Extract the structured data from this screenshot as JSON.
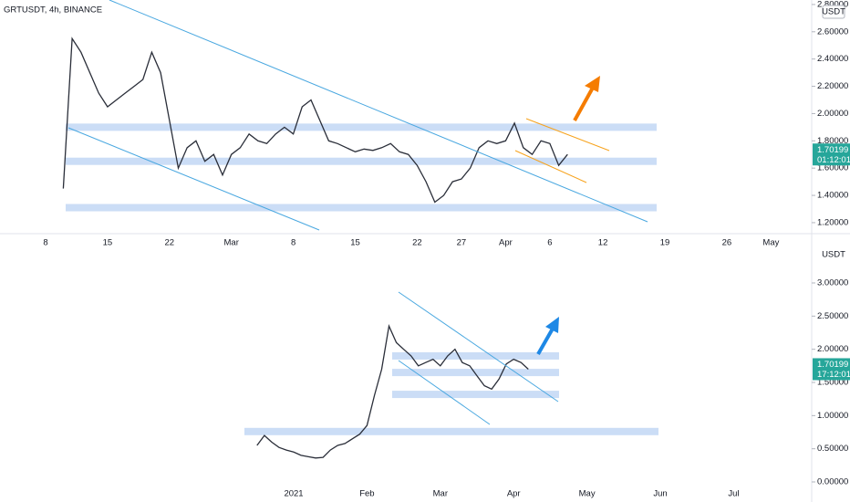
{
  "chart_data": [
    {
      "type": "line",
      "title": "GRTUSDT, 4h, BINANCE",
      "currency": "USDT",
      "last_price_label": "1.70199",
      "countdown": "01:12:01",
      "color": "#2a2e39",
      "level_color": "#c5d9f5",
      "categories": [
        null,
        null,
        null,
        null,
        null,
        "8",
        null,
        null,
        null,
        null,
        null,
        null,
        "15",
        null,
        null,
        null,
        null,
        null,
        null,
        "22",
        null,
        null,
        null,
        null,
        null,
        null,
        "Mar",
        null,
        null,
        null,
        null,
        null,
        null,
        "8",
        null,
        null,
        null,
        null,
        null,
        null,
        "15",
        null,
        null,
        null,
        null,
        null,
        null,
        "22",
        null,
        null,
        null,
        null,
        "27",
        null,
        null,
        null,
        null,
        "Apr",
        null,
        null,
        null,
        null,
        "6",
        null,
        null,
        null,
        null,
        null,
        "12",
        null,
        null,
        null,
        null,
        null,
        null,
        "19",
        null,
        null,
        null,
        null,
        null,
        null,
        "26",
        null,
        null,
        null,
        null,
        "May",
        null,
        null
      ],
      "values": [
        null,
        null,
        null,
        null,
        null,
        null,
        null,
        1.45,
        2.55,
        2.45,
        2.3,
        2.15,
        2.05,
        2.1,
        2.15,
        2.2,
        2.25,
        2.45,
        2.3,
        1.95,
        1.6,
        1.75,
        1.8,
        1.65,
        1.7,
        1.55,
        1.7,
        1.75,
        1.85,
        1.8,
        1.78,
        1.85,
        1.9,
        1.85,
        2.05,
        2.1,
        1.95,
        1.8,
        1.78,
        1.75,
        1.72,
        1.74,
        1.73,
        1.75,
        1.78,
        1.72,
        1.7,
        1.62,
        1.5,
        1.35,
        1.4,
        1.5,
        1.52,
        1.6,
        1.75,
        1.8,
        1.78,
        1.8,
        1.93,
        1.75,
        1.7,
        1.8,
        1.78,
        1.62,
        1.7,
        null,
        null,
        null,
        null,
        null,
        null,
        null,
        null,
        null,
        null,
        null,
        null,
        null,
        null,
        null,
        null,
        null,
        null,
        null,
        null,
        null,
        null,
        null,
        null,
        null
      ],
      "levels": [
        1.9,
        1.65,
        1.31
      ],
      "ylim": [
        1.146,
        2.833
      ],
      "yticks": [
        {
          "value": 1.2,
          "label": "1.20000"
        },
        {
          "value": 1.4,
          "label": "1.40000"
        },
        {
          "value": 1.6,
          "label": "1.60000"
        },
        {
          "value": 1.8,
          "label": "1.80000"
        },
        {
          "value": 2.0,
          "label": "2.00000"
        },
        {
          "value": 2.2,
          "label": "2.20000"
        },
        {
          "value": 2.4,
          "label": "2.40000"
        },
        {
          "value": 2.6,
          "label": "2.60000"
        },
        {
          "value": 2.8,
          "label": "2.80000"
        }
      ]
    },
    {
      "type": "line",
      "currency": "USDT",
      "last_price_label": "1.70199",
      "countdown": "17:12:01",
      "color": "#2a2e39",
      "level_color": "#c5d9f5",
      "categories": [
        null,
        null,
        null,
        null,
        null,
        "2021",
        null,
        null,
        null,
        null,
        null,
        null,
        null,
        null,
        null,
        "Feb",
        null,
        null,
        null,
        null,
        null,
        null,
        null,
        null,
        null,
        "Mar",
        null,
        null,
        null,
        null,
        null,
        null,
        null,
        null,
        null,
        "Apr",
        null,
        null,
        null,
        null,
        null,
        null,
        null,
        null,
        null,
        "May",
        null,
        null,
        null,
        null,
        null,
        null,
        null,
        null,
        null,
        "Jun",
        null,
        null,
        null,
        null,
        null,
        null,
        null,
        null,
        null,
        "Jul",
        null,
        null,
        null
      ],
      "values": [
        0.55,
        0.7,
        0.6,
        0.52,
        0.48,
        0.45,
        0.4,
        0.38,
        0.36,
        0.37,
        0.48,
        0.55,
        0.58,
        0.65,
        0.72,
        0.85,
        1.3,
        1.7,
        2.35,
        2.1,
        2.0,
        1.9,
        1.75,
        1.8,
        1.85,
        1.75,
        1.9,
        2.0,
        1.8,
        1.75,
        1.6,
        1.45,
        1.4,
        1.55,
        1.78,
        1.85,
        1.8,
        1.7,
        null,
        null,
        null,
        null,
        null,
        null,
        null,
        null,
        null,
        null,
        null,
        null,
        null,
        null,
        null,
        null,
        null,
        null,
        null,
        null,
        null,
        null,
        null,
        null,
        null,
        null,
        null,
        null,
        null,
        null,
        null
      ],
      "levels": [
        1.9,
        1.65,
        1.32,
        0.76
      ],
      "ylim": [
        -0.165,
        3.344
      ],
      "yticks": [
        {
          "value": 0,
          "label": "0.00000"
        },
        {
          "value": 0.5,
          "label": "0.50000"
        },
        {
          "value": 1.0,
          "label": "1.00000"
        },
        {
          "value": 1.5,
          "label": "1.50000"
        },
        {
          "value": 2.0,
          "label": "2.00000"
        },
        {
          "value": 2.5,
          "label": "2.50000"
        },
        {
          "value": 3.0,
          "label": "3.00000"
        }
      ]
    }
  ]
}
